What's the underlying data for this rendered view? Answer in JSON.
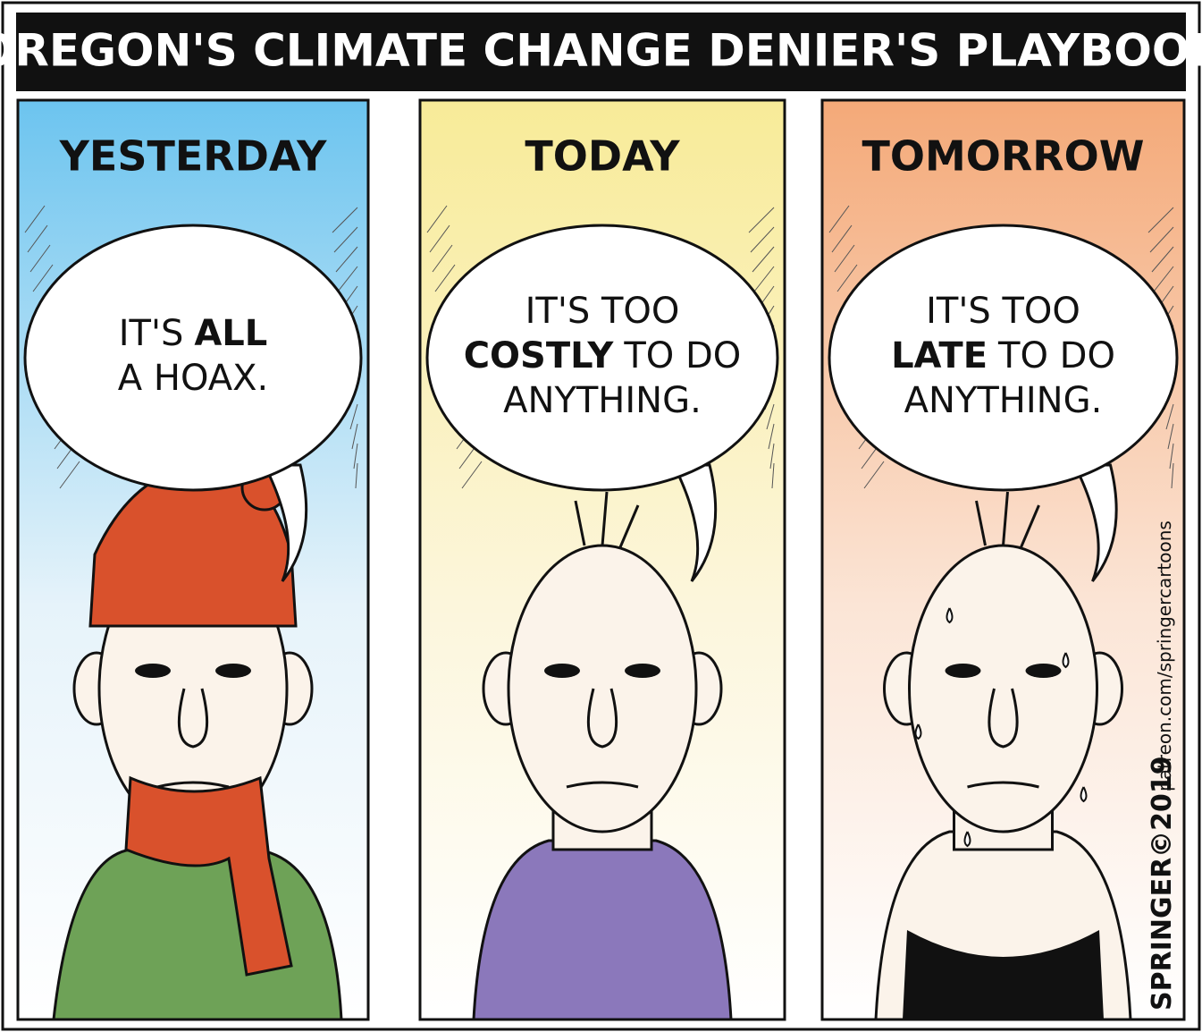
{
  "title": "OREGON'S CLIMATE CHANGE DENIER'S PLAYBOOK",
  "panels": [
    {
      "heading": "YESTERDAY",
      "speech": [
        [
          {
            "text": "IT'S"
          },
          {
            "text": "ALL",
            "bold": true
          }
        ],
        [
          {
            "text": "A HOAX."
          }
        ]
      ]
    },
    {
      "heading": "TODAY",
      "speech": [
        [
          {
            "text": "IT'S TOO"
          }
        ],
        [
          {
            "text": "COSTLY",
            "bold": true
          },
          {
            "text": "TO DO"
          }
        ],
        [
          {
            "text": "ANYTHING."
          }
        ]
      ]
    },
    {
      "heading": "TOMORROW",
      "speech": [
        [
          {
            "text": "IT'S TOO"
          }
        ],
        [
          {
            "text": "LATE",
            "bold": true
          },
          {
            "text": "TO DO"
          }
        ],
        [
          {
            "text": "ANYTHING."
          }
        ]
      ]
    }
  ],
  "signature": "SPRINGER©2019",
  "credit": "patreon.com/springercartoons"
}
